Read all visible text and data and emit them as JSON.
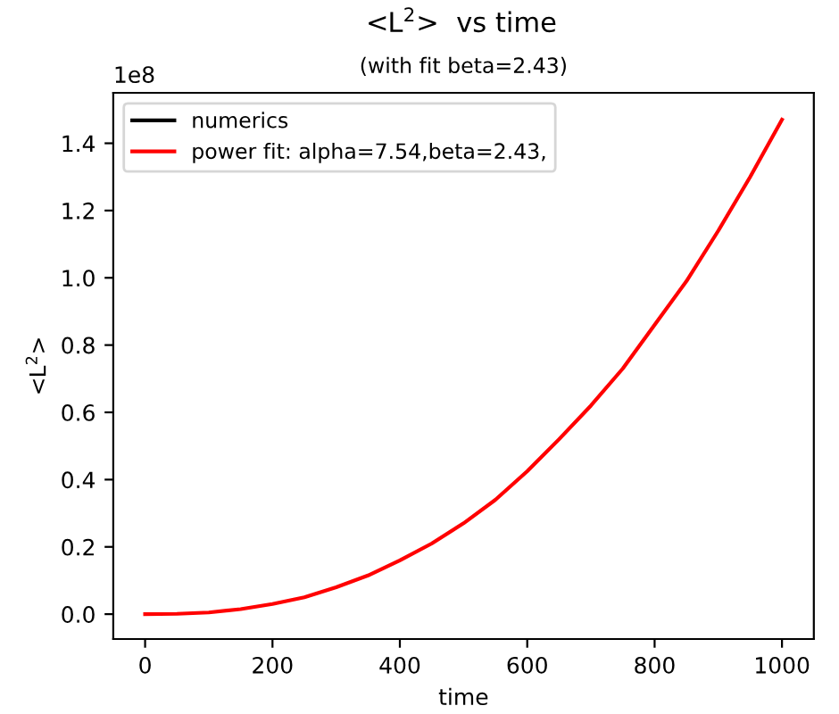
{
  "chart_data": {
    "type": "line",
    "title": "<L$^{2}$>  vs time",
    "subtitle": "(with fit beta=2.43)",
    "xlabel": "time",
    "ylabel": "<L$^{2}$>",
    "annotations": [
      "1e8"
    ],
    "x": [
      0,
      50,
      100,
      150,
      200,
      250,
      300,
      350,
      400,
      450,
      500,
      550,
      600,
      650,
      700,
      750,
      800,
      850,
      900,
      950,
      1000
    ],
    "series": [
      {
        "name": "numerics",
        "color": "#000000",
        "values": [
          null,
          null,
          null,
          null,
          null,
          null,
          null,
          null,
          null,
          null,
          null,
          null,
          null,
          null,
          null,
          null,
          null,
          null,
          null,
          null,
          null
        ]
      },
      {
        "name": "power fit: alpha=7.54,beta=2.43,",
        "color": "#ff0000",
        "values": [
          0,
          0.001,
          0.005,
          0.015,
          0.03,
          0.05,
          0.08,
          0.115,
          0.16,
          0.21,
          0.27,
          0.34,
          0.425,
          0.52,
          0.62,
          0.73,
          0.86,
          0.99,
          1.14,
          1.3,
          1.47
        ]
      }
    ],
    "xlim": [
      -50,
      1050
    ],
    "ylim": [
      -0.074,
      1.55
    ],
    "xticks": [
      0,
      200,
      400,
      600,
      800,
      1000
    ],
    "yticks": [
      {
        "value": 0,
        "label": "0.0"
      },
      {
        "value": 0.2,
        "label": "0.2"
      },
      {
        "value": 0.4,
        "label": "0.4"
      },
      {
        "value": 0.6,
        "label": "0.6"
      },
      {
        "value": 0.8,
        "label": "0.8"
      },
      {
        "value": 1.0,
        "label": "1.0"
      },
      {
        "value": 1.2,
        "label": "1.2"
      },
      {
        "value": 1.4,
        "label": "1.4"
      }
    ],
    "grid": false,
    "legend": "top left",
    "marker": "none",
    "line_style": "solid"
  }
}
